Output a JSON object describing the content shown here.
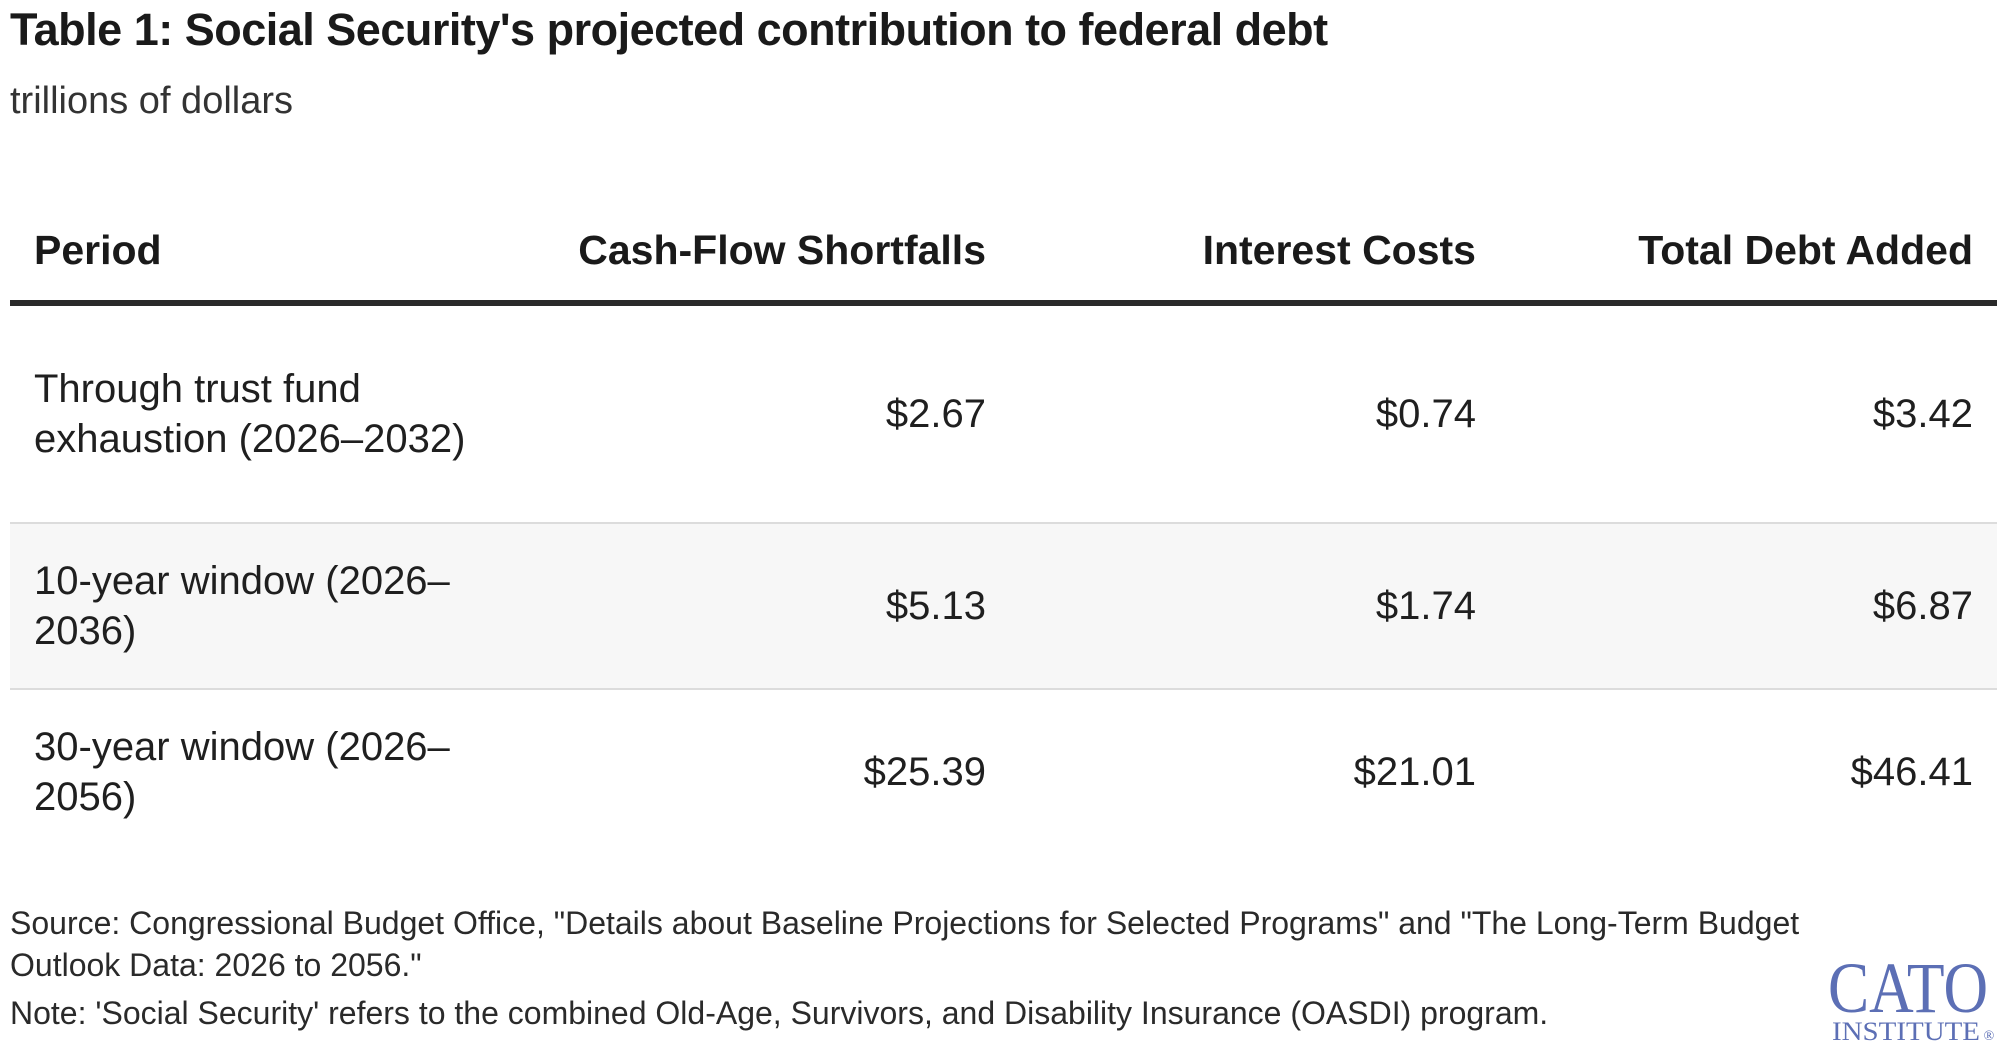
{
  "header": {
    "title": "Table 1: Social Security's projected contribution to federal debt",
    "subtitle": "trillions of dollars"
  },
  "table": {
    "columns": [
      "Period",
      "Cash-Flow Shortfalls",
      "Interest Costs",
      "Total Debt Added"
    ],
    "rows": [
      {
        "period": "Through trust fund exhaustion (2026–2032)",
        "cash_flow": "$2.67",
        "interest": "$0.74",
        "total": "$3.42"
      },
      {
        "period": "10-year window (2026–2036)",
        "cash_flow": "$5.13",
        "interest": "$1.74",
        "total": "$6.87"
      },
      {
        "period": "30-year window (2026–2056)",
        "cash_flow": "$25.39",
        "interest": "$21.01",
        "total": "$46.41"
      }
    ]
  },
  "footer": {
    "source": "Source: Congressional Budget Office, \"Details about Baseline Projections for Selected Programs\" and \"The Long-Term Budget Outlook Data: 2026 to 2056.\"",
    "note": "Note: 'Social Security' refers to the combined Old-Age, Survivors, and Disability Insurance (OASDI) program."
  },
  "logo": {
    "text_main": "CATO",
    "text_sub": "INSTITUTE",
    "mark": "®",
    "color": "#5c6fb5"
  }
}
